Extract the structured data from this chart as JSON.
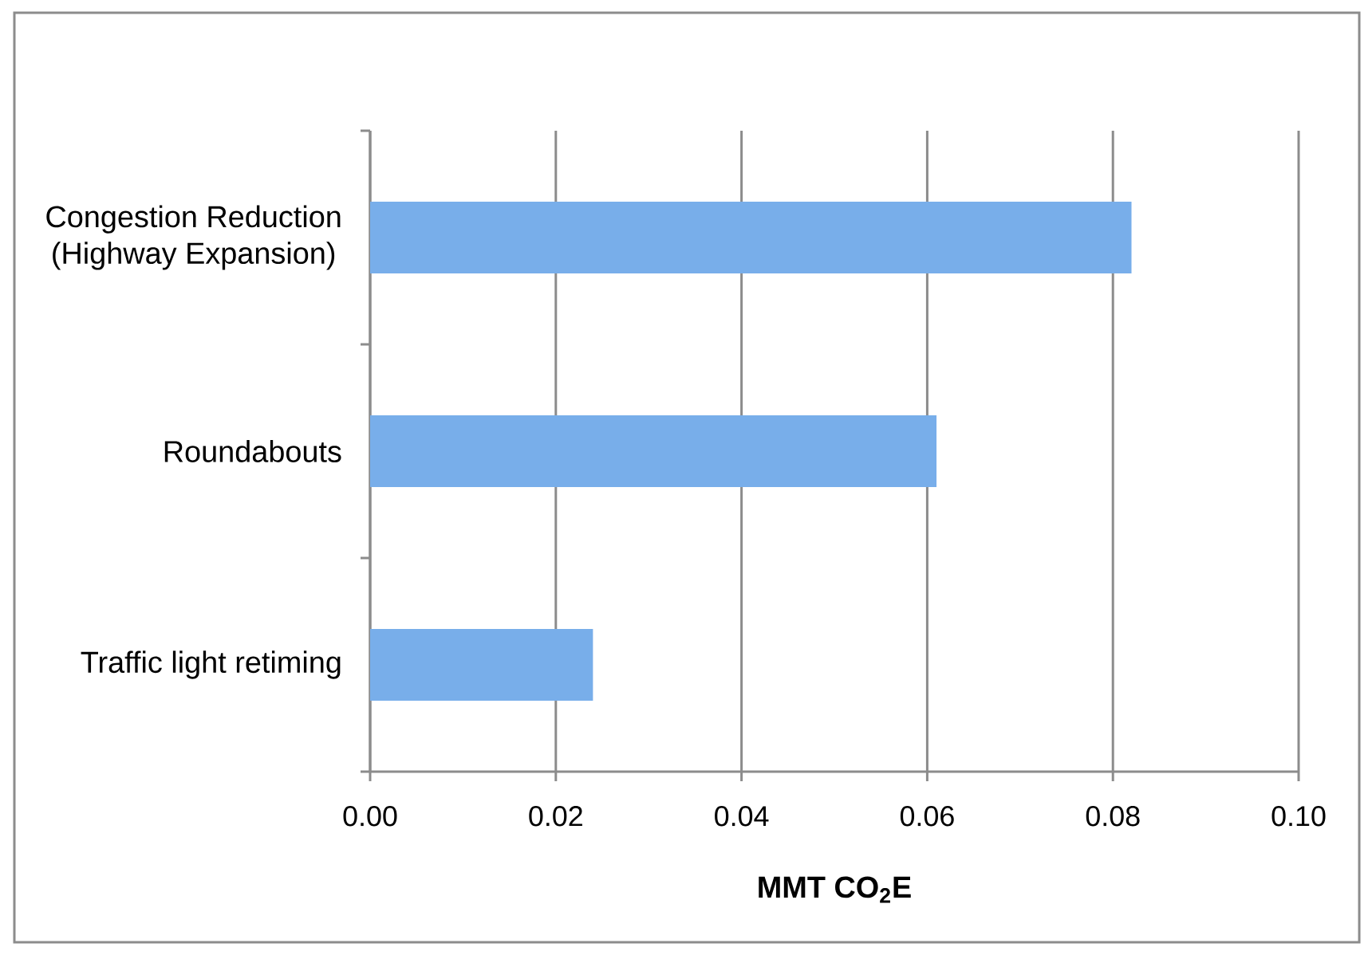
{
  "chart_data": {
    "type": "bar",
    "orientation": "horizontal",
    "categories": [
      "Congestion Reduction (Highway Expansion)",
      "Roundabouts",
      "Traffic light retiming"
    ],
    "values": [
      0.082,
      0.061,
      0.024
    ],
    "color": "#78aeea",
    "xlabel": "MMT CO$_{2}$E",
    "xlim": [
      0,
      0.1
    ],
    "xticks": [
      {
        "value": 0,
        "label": "0.00"
      },
      {
        "value": 0.02,
        "label": "0.02"
      },
      {
        "value": 0.04,
        "label": "0.04"
      },
      {
        "value": 0.06,
        "label": "0.06"
      },
      {
        "value": 0.08,
        "label": "0.08"
      },
      {
        "value": 0.1,
        "label": "0.10"
      }
    ],
    "grid": "x"
  }
}
